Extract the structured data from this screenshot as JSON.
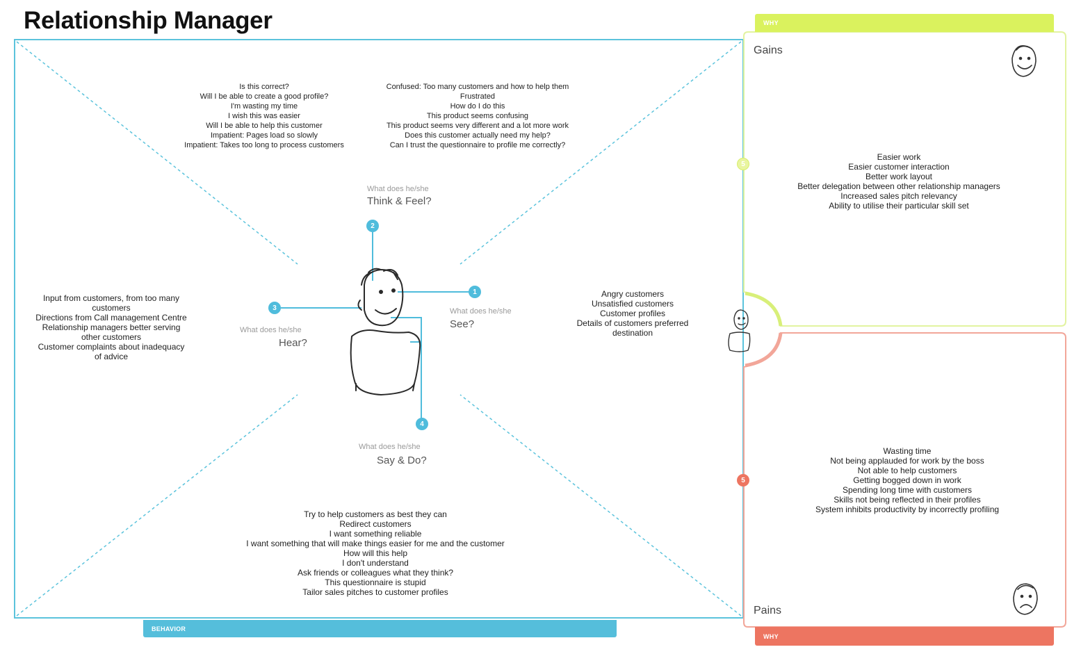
{
  "page": {
    "title": "Relationship Manager"
  },
  "tabs": {
    "behavior": "BEHAVIOR",
    "gains": "WHY",
    "pains": "WHY"
  },
  "quadrants": {
    "think_feel": {
      "number": "2",
      "prompt": "What does he/she",
      "heading": "Think & Feel?",
      "notes_left": "Is this correct?\nWill I be able to create a good profile?\nI'm wasting my time\nI wish this was easier\nWill I be able to help this customer\nImpatient: Pages load so slowly\nImpatient: Takes too long to process customers",
      "notes_right": "Confused: Too many customers and how to help them\nFrustrated\nHow do I do this\nThis product seems confusing\nThis product seems very different and a lot more work\nDoes this customer actually need my help?\nCan I trust the questionnaire to profile me correctly?"
    },
    "see": {
      "number": "1",
      "prompt": "What does he/she",
      "heading": "See?",
      "notes": "Angry customers\nUnsatisfied customers\nCustomer profiles\nDetails of customers preferred\ndestination"
    },
    "hear": {
      "number": "3",
      "prompt": "What does he/she",
      "heading": "Hear?",
      "notes": "Input from customers, from too many\ncustomers\nDirections from Call management Centre\nRelationship managers better serving\nother customers\nCustomer complaints about inadequacy\nof advice"
    },
    "say_do": {
      "number": "4",
      "prompt": "What does he/she",
      "heading": "Say & Do?",
      "notes": "Try to help customers as best they can\nRedirect customers\nI want something reliable\nI want something that will make things easier for me and the customer\nHow will this help\nI don't understand\nAsk friends or colleagues what they think?\nThis questionnaire is stupid\nTailor sales pitches to customer profiles"
    }
  },
  "gains": {
    "label": "Gains",
    "number": "5",
    "notes": "Easier work\nEasier customer interaction\nBetter work layout\nBetter delegation between other relationship managers\nIncreased sales pitch relevancy\nAbility to utilise their particular skill set"
  },
  "pains": {
    "label": "Pains",
    "number": "5",
    "notes": "Wasting time\nNot being applauded for work by the boss\nNot able to help customers\nGetting bogged down in work\nSpending long time with customers\nSkills not being reflected in their profiles\nSystem inhibits productivity by incorrectly profiling"
  },
  "colors": {
    "behavior": "#55bedb",
    "gains": "#daf25e",
    "pains": "#ed7561"
  },
  "icons": {
    "persona": "person-sketch-icon",
    "happy_face": "happy-face-icon",
    "sad_face": "worried-face-icon",
    "small_persona": "small-person-icon"
  }
}
